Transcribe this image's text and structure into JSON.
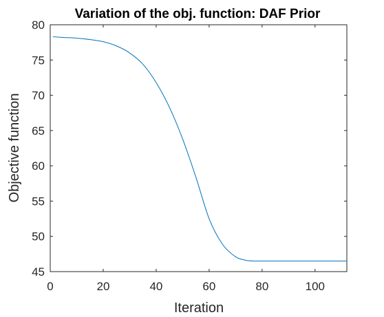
{
  "chart_data": {
    "type": "line",
    "title": "Variation of the obj. function: DAF Prior",
    "xlabel": "Iteration",
    "ylabel": "Objective function",
    "xlim": [
      0,
      112
    ],
    "ylim": [
      45,
      80
    ],
    "xticks": [
      0,
      20,
      40,
      60,
      80,
      100
    ],
    "yticks": [
      45,
      50,
      55,
      60,
      65,
      70,
      75,
      80
    ],
    "grid": false,
    "line_color": "#0072bd",
    "series": [
      {
        "x": [
          1,
          5,
          10,
          15,
          20,
          25,
          30,
          35,
          40,
          45,
          50,
          55,
          60,
          65,
          70,
          74,
          77,
          78,
          80,
          90,
          100,
          112
        ],
        "values": [
          78.3,
          78.2,
          78.1,
          77.9,
          77.6,
          77.0,
          76.0,
          74.4,
          71.8,
          68.3,
          63.8,
          58.4,
          52.5,
          48.9,
          47.1,
          46.6,
          46.5,
          46.5,
          46.5,
          46.5,
          46.5,
          46.5
        ]
      }
    ]
  }
}
